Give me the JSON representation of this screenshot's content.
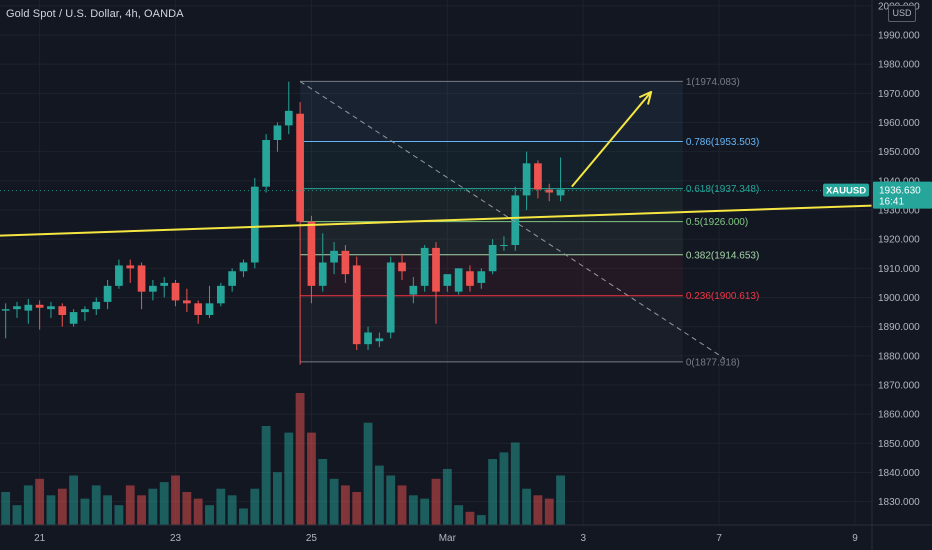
{
  "header": {
    "title": "Gold Spot / U.S. Dollar, 4h, OANDA",
    "currency": "USD"
  },
  "price_tag": {
    "symbol": "XAUUSD",
    "price": "1936.630",
    "countdown": "16:41"
  },
  "colors": {
    "background": "#131722",
    "bullish": "#26a69a",
    "bearish": "#ef5350",
    "trendline": "#f5e642",
    "arrow": "#f5e642",
    "price_tag": "#26a69a"
  },
  "chart_data": {
    "type": "candlestick",
    "title": "Gold Spot / U.S. Dollar, 4h, OANDA",
    "ylim": [
      1822,
      2002
    ],
    "y_ticks": [
      2000,
      1990,
      1980,
      1970,
      1960,
      1950,
      1940,
      1930,
      1920,
      1910,
      1900,
      1890,
      1880,
      1870,
      1860,
      1850,
      1840,
      1830
    ],
    "y_tick_labels": [
      "2000.000",
      "1990.000",
      "1980.000",
      "1970.000",
      "1960.000",
      "1950.000",
      "1940.000",
      "1930.000",
      "1920.000",
      "1910.000",
      "1900.000",
      "1890.000",
      "1880.000",
      "1870.000",
      "1860.000",
      "1850.000",
      "1840.000",
      "1830.000"
    ],
    "x_tick_labels": [
      {
        "label": "21",
        "index": 3
      },
      {
        "label": "23",
        "index": 15
      },
      {
        "label": "25",
        "index": 27
      },
      {
        "label": "Mar",
        "index": 39
      },
      {
        "label": "3",
        "index": 51
      },
      {
        "label": "7",
        "index": 63
      },
      {
        "label": "9",
        "index": 75
      }
    ],
    "x_range": [
      -0.5,
      76.5
    ],
    "candles": [
      {
        "o": 1895.5,
        "h": 1898,
        "c": 1896,
        "l": 1886
      },
      {
        "o": 1896,
        "h": 1898.5,
        "c": 1897,
        "l": 1893
      },
      {
        "o": 1895.5,
        "h": 1899.5,
        "c": 1897.5,
        "l": 1891
      },
      {
        "o": 1897.5,
        "h": 1899,
        "c": 1896.5,
        "l": 1889
      },
      {
        "o": 1896,
        "h": 1898.5,
        "c": 1897,
        "l": 1893
      },
      {
        "o": 1897,
        "h": 1898,
        "c": 1894,
        "l": 1890
      },
      {
        "o": 1891,
        "h": 1896,
        "c": 1895,
        "l": 1890
      },
      {
        "o": 1895,
        "h": 1897,
        "c": 1896,
        "l": 1892
      },
      {
        "o": 1896,
        "h": 1900,
        "c": 1898.5,
        "l": 1894
      },
      {
        "o": 1898.5,
        "h": 1906,
        "c": 1904,
        "l": 1896
      },
      {
        "o": 1904,
        "h": 1913,
        "c": 1911,
        "l": 1903
      },
      {
        "o": 1911,
        "h": 1913,
        "c": 1910,
        "l": 1905
      },
      {
        "o": 1911,
        "h": 1912,
        "c": 1902,
        "l": 1896
      },
      {
        "o": 1902,
        "h": 1906,
        "c": 1904,
        "l": 1899
      },
      {
        "o": 1904,
        "h": 1907,
        "c": 1905,
        "l": 1900
      },
      {
        "o": 1905,
        "h": 1906,
        "c": 1899,
        "l": 1897
      },
      {
        "o": 1899,
        "h": 1903,
        "c": 1898,
        "l": 1895
      },
      {
        "o": 1898,
        "h": 1899,
        "c": 1894,
        "l": 1891
      },
      {
        "o": 1894,
        "h": 1904,
        "c": 1898,
        "l": 1893
      },
      {
        "o": 1898,
        "h": 1905,
        "c": 1904,
        "l": 1897
      },
      {
        "o": 1904,
        "h": 1910,
        "c": 1909,
        "l": 1902
      },
      {
        "o": 1909,
        "h": 1913,
        "c": 1912,
        "l": 1907
      },
      {
        "o": 1912,
        "h": 1941,
        "c": 1938,
        "l": 1910
      },
      {
        "o": 1938,
        "h": 1956,
        "c": 1954,
        "l": 1936
      },
      {
        "o": 1954,
        "h": 1960,
        "c": 1959,
        "l": 1950
      },
      {
        "o": 1959,
        "h": 1974,
        "c": 1964,
        "l": 1956
      },
      {
        "o": 1963,
        "h": 1967,
        "c": 1926,
        "l": 1877
      },
      {
        "o": 1926,
        "h": 1928,
        "c": 1904,
        "l": 1898
      },
      {
        "o": 1904,
        "h": 1922,
        "c": 1912,
        "l": 1902
      },
      {
        "o": 1912,
        "h": 1919,
        "c": 1916,
        "l": 1908
      },
      {
        "o": 1916,
        "h": 1918,
        "c": 1908,
        "l": 1905
      },
      {
        "o": 1911,
        "h": 1914,
        "c": 1884,
        "l": 1882
      },
      {
        "o": 1884,
        "h": 1890,
        "c": 1888,
        "l": 1882
      },
      {
        "o": 1885,
        "h": 1888,
        "c": 1886,
        "l": 1883
      },
      {
        "o": 1888,
        "h": 1914,
        "c": 1912,
        "l": 1886
      },
      {
        "o": 1912,
        "h": 1915,
        "c": 1909,
        "l": 1906
      },
      {
        "o": 1901,
        "h": 1907,
        "c": 1904,
        "l": 1898
      },
      {
        "o": 1904,
        "h": 1918,
        "c": 1917,
        "l": 1902
      },
      {
        "o": 1917,
        "h": 1919,
        "c": 1902,
        "l": 1891
      },
      {
        "o": 1904,
        "h": 1907,
        "c": 1908,
        "l": 1902
      },
      {
        "o": 1902,
        "h": 1910,
        "c": 1910,
        "l": 1901
      },
      {
        "o": 1909,
        "h": 1911,
        "c": 1904,
        "l": 1902
      },
      {
        "o": 1905,
        "h": 1910,
        "c": 1909,
        "l": 1903
      },
      {
        "o": 1909,
        "h": 1920,
        "c": 1918,
        "l": 1908
      },
      {
        "o": 1918,
        "h": 1921,
        "c": 1918,
        "l": 1916
      },
      {
        "o": 1918,
        "h": 1938,
        "c": 1935,
        "l": 1916
      },
      {
        "o": 1935,
        "h": 1950,
        "c": 1946,
        "l": 1930
      },
      {
        "o": 1946,
        "h": 1947,
        "c": 1937,
        "l": 1934
      },
      {
        "o": 1937,
        "h": 1939,
        "c": 1936,
        "l": 1933
      },
      {
        "o": 1935,
        "h": 1948,
        "c": 1937,
        "l": 1933
      }
    ],
    "volumes": [
      10,
      6,
      12,
      14,
      9,
      11,
      15,
      8,
      12,
      9,
      6,
      12,
      9,
      11,
      13,
      15,
      10,
      8,
      6,
      11,
      9,
      5,
      11,
      30,
      16,
      28,
      40,
      28,
      20,
      14,
      12,
      10,
      31,
      18,
      15,
      12,
      9,
      8,
      14,
      17,
      6,
      4,
      3,
      20,
      22,
      25,
      11,
      9,
      8,
      15
    ],
    "volume_max": 40,
    "fibonacci": {
      "x_start_index": 26,
      "levels": [
        {
          "label": "1(1974.083)",
          "value": 1974.083,
          "color": "#787b86"
        },
        {
          "label": "0.786(1953.503)",
          "value": 1953.503,
          "color": "#64b5f6"
        },
        {
          "label": "0.618(1937.348)",
          "value": 1937.348,
          "color": "#26a69a"
        },
        {
          "label": "0.5(1926.000)",
          "value": 1926.0,
          "color": "#81c784"
        },
        {
          "label": "0.382(1914.653)",
          "value": 1914.653,
          "color": "#a5d6a7"
        },
        {
          "label": "0.236(1900.613)",
          "value": 1900.613,
          "color": "#f23645"
        },
        {
          "label": "0(1877.918)",
          "value": 1877.918,
          "color": "#787b86"
        }
      ]
    },
    "trendline": {
      "from": {
        "index": -0.5,
        "value": 1921.2
      },
      "to": {
        "index": 76.5,
        "value": 1931.5
      }
    },
    "diagonal": {
      "from": {
        "index": 26,
        "value": 1974.083
      },
      "to": {
        "index": 63.5,
        "value": 1879
      }
    },
    "arrow": {
      "from": {
        "index": 50,
        "value": 1938
      },
      "to": {
        "index": 57,
        "value": 1970.5
      }
    },
    "last_price": 1936.63
  }
}
